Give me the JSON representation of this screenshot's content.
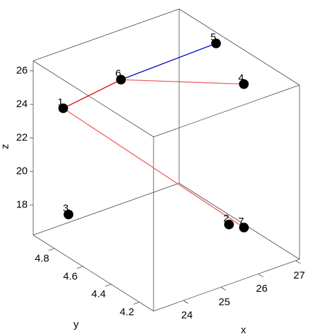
{
  "chart_data": {
    "type": "scatter3d",
    "xlabel": "x",
    "ylabel": "y",
    "zlabel": "z",
    "labels": [
      "1",
      "2",
      "3",
      "4",
      "5",
      "6",
      "7"
    ],
    "x": [
      23.7,
      26.2,
      23.5,
      26.9,
      26.8,
      24.6,
      26.6
    ],
    "y": [
      4.87,
      4.36,
      4.78,
      4.44,
      4.61,
      4.7,
      4.36
    ],
    "z": [
      23.8,
      17.6,
      18.1,
      25.0,
      26.6,
      25.7,
      17.1
    ],
    "color": "#000000",
    "segments": [
      {
        "from": 0,
        "to": 5,
        "color": "#e00000"
      },
      {
        "from": 5,
        "to": 4,
        "color": "#0000cc"
      },
      {
        "from": 5,
        "to": 3,
        "color": "#f06060"
      },
      {
        "from": 0,
        "to": 6,
        "color": "#f06060"
      }
    ],
    "xlim": [
      23.2,
      27.1
    ],
    "ylim": [
      4.1,
      4.95
    ],
    "zlim": [
      16.2,
      26.6
    ],
    "xticks": [
      24,
      25,
      26,
      27
    ],
    "yticks": [
      4.2,
      4.4,
      4.6,
      4.8
    ],
    "zticks": [
      18,
      20,
      22,
      24,
      26
    ]
  }
}
